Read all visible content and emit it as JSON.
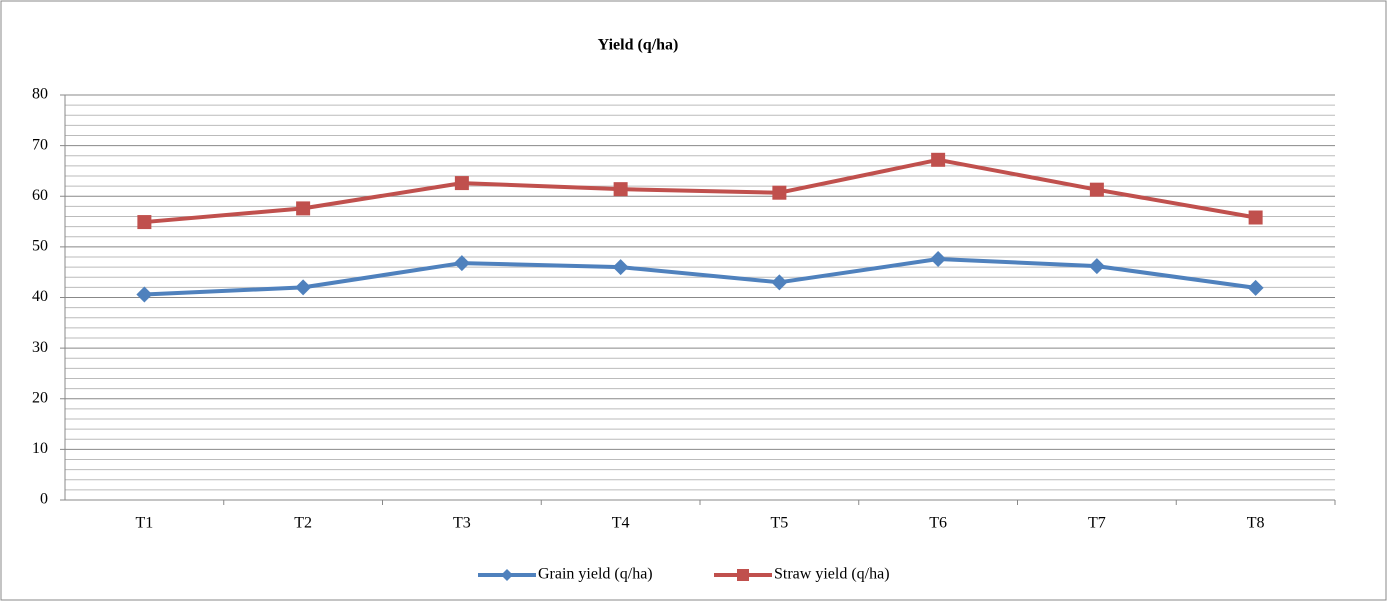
{
  "chart_data": {
    "type": "line",
    "title": "Yield (q/ha)",
    "categories": [
      "T1",
      "T2",
      "T3",
      "T4",
      "T5",
      "T6",
      "T7",
      "T8"
    ],
    "series": [
      {
        "name": "Grain yield (q/ha)",
        "color": "#4f81bd",
        "marker": "diamond",
        "values": [
          40.6,
          42.0,
          46.8,
          46.0,
          43.0,
          47.6,
          46.2,
          41.9
        ]
      },
      {
        "name": "Straw yield (q/ha)",
        "color": "#c0504d",
        "marker": "square",
        "values": [
          54.9,
          57.6,
          62.6,
          61.4,
          60.7,
          67.2,
          61.3,
          55.8
        ]
      }
    ],
    "ylim": [
      0,
      80
    ],
    "yticks": [
      0,
      10,
      20,
      30,
      40,
      50,
      60,
      70,
      80
    ],
    "grid": true,
    "minor_grid_divisions": 5,
    "legend": "bottom"
  }
}
